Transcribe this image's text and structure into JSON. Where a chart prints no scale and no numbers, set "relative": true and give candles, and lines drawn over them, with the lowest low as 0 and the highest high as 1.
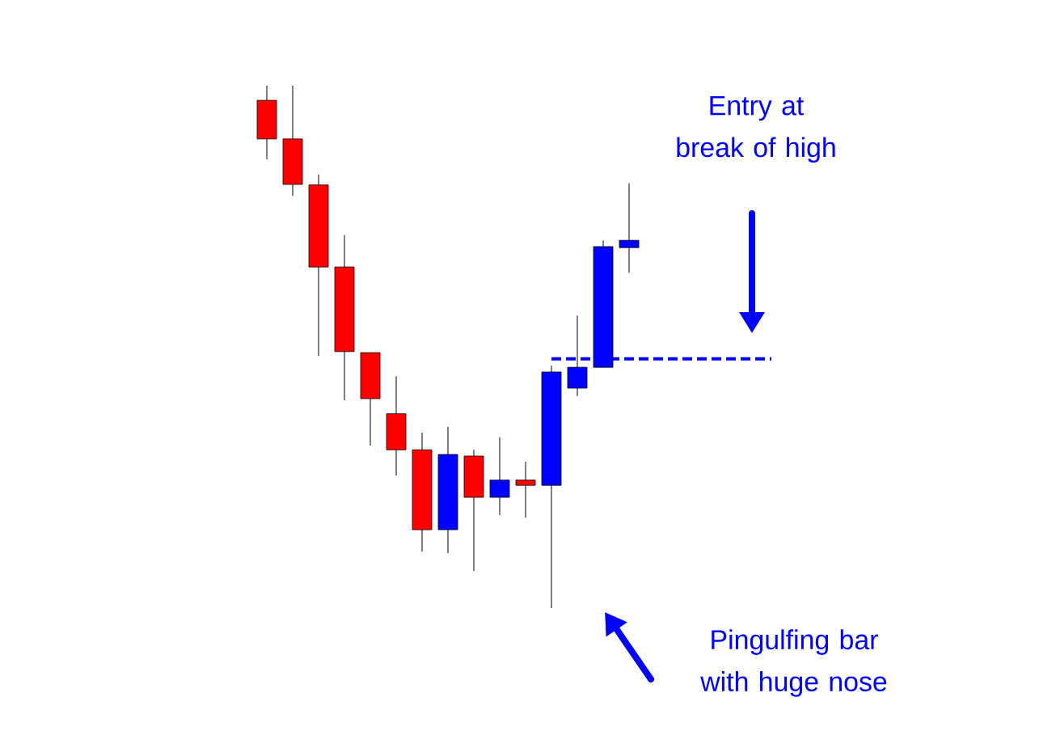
{
  "chart_data": {
    "type": "candlestick",
    "relative": true,
    "categories": [
      null,
      null,
      null,
      null,
      null,
      null,
      null,
      null,
      null,
      null,
      null,
      null,
      null,
      null,
      null
    ],
    "ohlc": [
      [
        0.972,
        1.0,
        0.859,
        0.898
      ],
      [
        0.898,
        1.0,
        0.789,
        0.811
      ],
      [
        0.81,
        0.83,
        0.483,
        0.653
      ],
      [
        0.653,
        0.714,
        0.398,
        0.491
      ],
      [
        0.489,
        0.489,
        0.311,
        0.401
      ],
      [
        0.372,
        0.444,
        0.254,
        0.303
      ],
      [
        0.303,
        0.336,
        0.108,
        0.15
      ],
      [
        0.15,
        0.347,
        0.105,
        0.294
      ],
      [
        0.291,
        0.303,
        0.071,
        0.212
      ],
      [
        0.212,
        0.327,
        0.178,
        0.245
      ],
      [
        0.245,
        0.28,
        0.173,
        0.235
      ],
      [
        0.235,
        0.464,
        0.0,
        0.452
      ],
      [
        0.421,
        0.56,
        0.406,
        0.461
      ],
      [
        0.461,
        0.704,
        0.46,
        0.692
      ],
      [
        0.69,
        0.813,
        0.642,
        0.704
      ]
    ],
    "colors": [
      "#ff0000",
      "#ff0000",
      "#ff0000",
      "#ff0000",
      "#ff0000",
      "#ff0000",
      "#ff0000",
      "#0000ff",
      "#ff0000",
      "#0000ff",
      "#ff0000",
      "#0000ff",
      "#0000ff",
      "#0000ff",
      "#0000ff"
    ],
    "ref_lines": [
      {
        "axis": "y",
        "value": 0.477,
        "color": "#0000ff",
        "line_style": "dashed"
      }
    ],
    "annotations": [
      "Entry at break of high",
      "Pingulfing bar with huge nose"
    ]
  }
}
